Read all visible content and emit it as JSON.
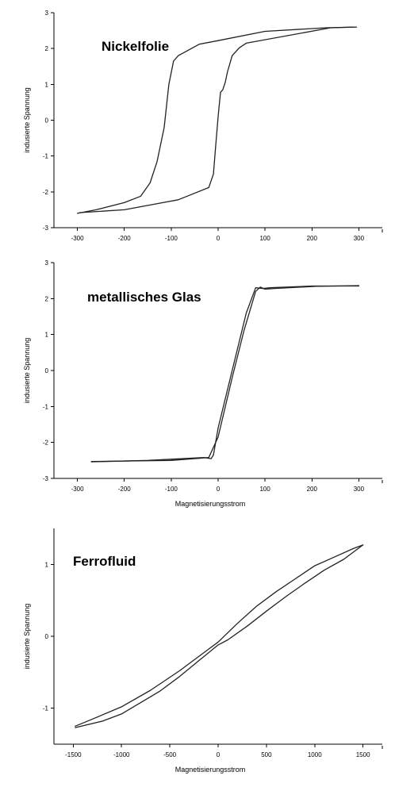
{
  "chart_data": [
    {
      "type": "line",
      "title": "Nickelfolie",
      "xlabel": "",
      "ylabel": "indusierte Spannung",
      "xlim": [
        -350,
        350
      ],
      "ylim": [
        -3,
        3
      ],
      "x_ticks": [
        -300,
        -200,
        -100,
        0,
        100,
        200,
        300
      ],
      "y_ticks": [
        -3,
        -2,
        -1,
        0,
        1,
        2,
        3
      ],
      "tick_labels_x": [
        "-300",
        "-200",
        "-100",
        "0",
        "100",
        "200",
        "300"
      ],
      "tick_labels_y": [
        "-3",
        "-2",
        "-1",
        "0",
        "1",
        "2",
        "3"
      ],
      "series": [
        {
          "x": [
            290,
            230,
            100,
            0,
            -40,
            -85,
            -95,
            -105,
            -115,
            -130,
            -145,
            -165,
            -200,
            -260,
            -300
          ],
          "y": [
            2.6,
            2.58,
            2.48,
            2.22,
            2.12,
            1.8,
            1.65,
            1.0,
            -0.2,
            -1.15,
            -1.75,
            -2.12,
            -2.3,
            -2.5,
            -2.6
          ]
        },
        {
          "x": [
            -295,
            -200,
            -85,
            -20,
            -10,
            -5,
            0,
            5,
            10,
            15,
            20,
            30,
            45,
            60,
            240,
            295
          ],
          "y": [
            -2.58,
            -2.5,
            -2.22,
            -1.88,
            -1.5,
            -0.7,
            0.1,
            0.78,
            0.85,
            1.05,
            1.35,
            1.8,
            2.02,
            2.15,
            2.58,
            2.6
          ]
        }
      ]
    },
    {
      "type": "line",
      "title": "metallisches Glas",
      "xlabel": "Magnetisierungsstrom",
      "ylabel": "indusierte Spannung",
      "xlim": [
        -350,
        350
      ],
      "ylim": [
        -3,
        3
      ],
      "x_ticks": [
        -300,
        -200,
        -100,
        0,
        100,
        200,
        300
      ],
      "y_ticks": [
        -3,
        -2,
        -1,
        0,
        1,
        2,
        3
      ],
      "tick_labels_x": [
        "-300",
        "-200",
        "-100",
        "0",
        "100",
        "200",
        "300"
      ],
      "tick_labels_y": [
        "-3",
        "-2",
        "-1",
        "0",
        "1",
        "2",
        "3"
      ],
      "series": [
        {
          "x": [
            -270,
            -150,
            -30,
            -15,
            -10,
            0,
            30,
            60,
            80,
            95,
            110,
            200,
            300
          ],
          "y": [
            -2.54,
            -2.5,
            -2.42,
            -2.45,
            -2.35,
            -1.6,
            0.0,
            1.6,
            2.3,
            2.28,
            2.3,
            2.35,
            2.35
          ]
        },
        {
          "x": [
            300,
            210,
            120,
            100,
            90,
            80,
            55,
            30,
            10,
            0,
            -20,
            -100,
            -270
          ],
          "y": [
            2.36,
            2.34,
            2.28,
            2.26,
            2.32,
            2.2,
            1.1,
            -0.2,
            -1.3,
            -1.85,
            -2.42,
            -2.5,
            -2.53
          ]
        }
      ]
    },
    {
      "type": "line",
      "title": "Ferrofluid",
      "xlabel": "Magnetisierungsstrom",
      "ylabel": "indusierte Spannung",
      "xlim": [
        -1700,
        1700
      ],
      "ylim": [
        -1.5,
        1.5
      ],
      "x_ticks": [
        -1500,
        -1000,
        -500,
        0,
        500,
        1000,
        1500
      ],
      "y_ticks": [
        -1,
        0,
        1
      ],
      "tick_labels_x": [
        "-1500",
        "-1000",
        "-500",
        "0",
        "500",
        "1000",
        "1500"
      ],
      "tick_labels_y": [
        "-1",
        "0",
        "1"
      ],
      "series": [
        {
          "x": [
            -1480,
            -1300,
            -1000,
            -700,
            -400,
            -200,
            0,
            200,
            400,
            600,
            800,
            1000,
            1200,
            1400,
            1500
          ],
          "y": [
            -1.25,
            -1.15,
            -0.98,
            -0.75,
            -0.48,
            -0.28,
            -0.08,
            0.18,
            0.42,
            0.62,
            0.8,
            0.98,
            1.1,
            1.22,
            1.27
          ]
        },
        {
          "x": [
            1500,
            1300,
            1100,
            900,
            700,
            500,
            300,
            100,
            0,
            -200,
            -400,
            -600,
            -800,
            -1000,
            -1200,
            -1480
          ],
          "y": [
            1.27,
            1.07,
            0.92,
            0.74,
            0.55,
            0.35,
            0.14,
            -0.05,
            -0.12,
            -0.34,
            -0.56,
            -0.76,
            -0.92,
            -1.08,
            -1.18,
            -1.27
          ]
        }
      ]
    }
  ]
}
